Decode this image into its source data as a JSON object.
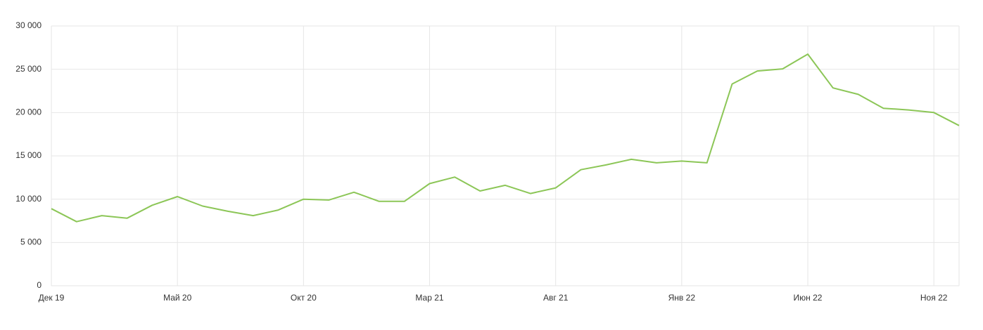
{
  "chart_data": {
    "type": "line",
    "categories": [
      "Дек 19",
      null,
      null,
      null,
      null,
      "Май 20",
      null,
      null,
      null,
      null,
      "Окт 20",
      null,
      null,
      null,
      null,
      "Мар 21",
      null,
      null,
      null,
      null,
      "Авг 21",
      null,
      null,
      null,
      null,
      "Янв 22",
      null,
      null,
      null,
      null,
      "Июн 22",
      null,
      null,
      null,
      null,
      "Ноя 22",
      null
    ],
    "series": [
      {
        "color": "#8cc657",
        "values": [
          8900,
          7400,
          8100,
          7800,
          9300,
          10300,
          9200,
          8600,
          8100,
          8750,
          10000,
          9900,
          10800,
          9750,
          9750,
          11800,
          12550,
          10950,
          11600,
          10650,
          11300,
          13400,
          13950,
          14600,
          14200,
          14400,
          14200,
          23300,
          24800,
          25050,
          26750,
          22850,
          22100,
          20500,
          20300,
          20000,
          18500
        ]
      }
    ],
    "ylim": [
      0,
      30000
    ],
    "yticks": [
      0,
      {
        "value": 5000,
        "label": "5 000"
      },
      {
        "value": 10000,
        "label": "10 000"
      },
      {
        "value": 15000,
        "label": "15 000"
      },
      {
        "value": 20000,
        "label": "20 000"
      },
      {
        "value": 25000,
        "label": "25 000"
      },
      {
        "value": 30000,
        "label": "30 000"
      }
    ],
    "grid": true
  }
}
